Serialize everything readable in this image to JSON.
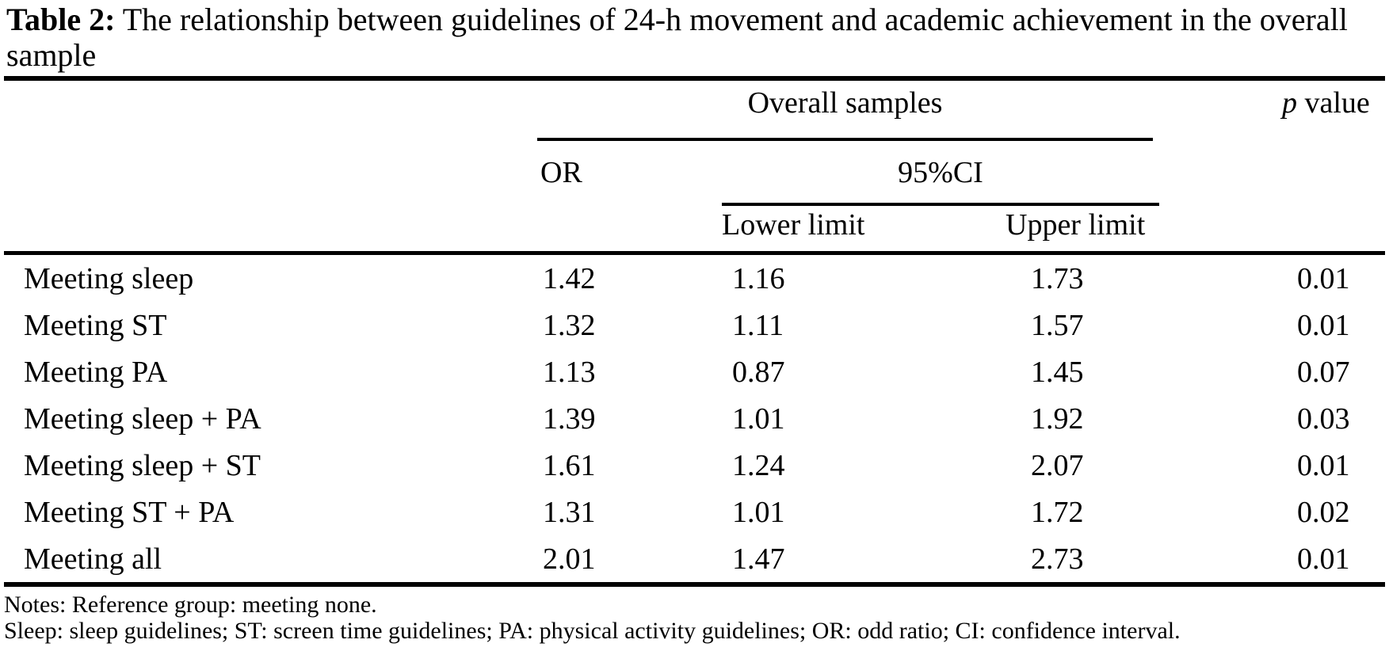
{
  "title": {
    "label": "Table 2:",
    "text": " The relationship between guidelines of 24-h movement and academic achievement in the overall sample"
  },
  "table": {
    "spanner": "Overall samples",
    "p_header": {
      "italic": "p",
      "rest": " value"
    },
    "or_header": "OR",
    "ci_header": "95%CI",
    "ci_sub": [
      "Lower limit",
      "Upper limit"
    ],
    "rows": [
      {
        "label": "Meeting sleep",
        "or": "1.42",
        "lower": "1.16",
        "upper": "1.73",
        "p": "0.01"
      },
      {
        "label": "Meeting ST",
        "or": "1.32",
        "lower": "1.11",
        "upper": "1.57",
        "p": "0.01"
      },
      {
        "label": "Meeting PA",
        "or": "1.13",
        "lower": "0.87",
        "upper": "1.45",
        "p": "0.07"
      },
      {
        "label": "Meeting sleep + PA",
        "or": "1.39",
        "lower": "1.01",
        "upper": "1.92",
        "p": "0.03"
      },
      {
        "label": "Meeting sleep + ST",
        "or": "1.61",
        "lower": "1.24",
        "upper": "2.07",
        "p": "0.01"
      },
      {
        "label": "Meeting ST + PA",
        "or": "1.31",
        "lower": "1.01",
        "upper": "1.72",
        "p": "0.02"
      },
      {
        "label": "Meeting all",
        "or": "2.01",
        "lower": "1.47",
        "upper": "2.73",
        "p": "0.01"
      }
    ]
  },
  "notes": [
    "Notes: Reference group: meeting none.",
    "Sleep: sleep guidelines; ST: screen time guidelines; PA: physical activity guidelines; OR: odd ratio; CI: confidence interval."
  ],
  "colors": {
    "text": "#000000",
    "background": "#ffffff",
    "rule": "#000000"
  }
}
